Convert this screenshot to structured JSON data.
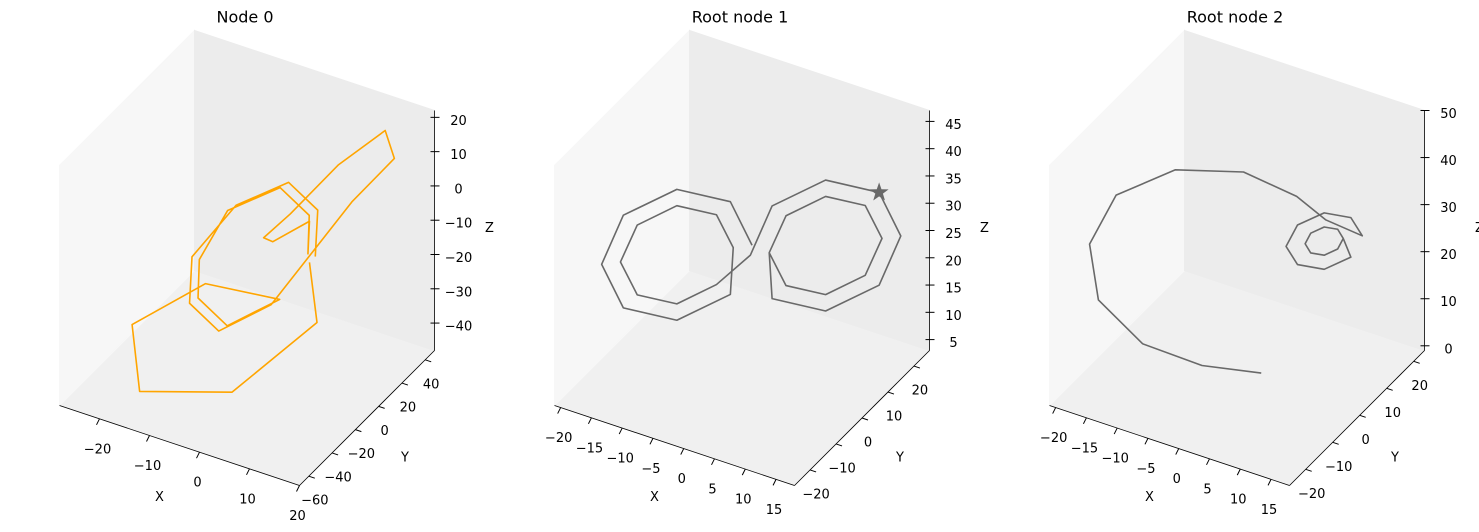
{
  "chart_data": [
    {
      "type": "line3d",
      "title": "Node 0",
      "xlabel": "X",
      "ylabel": "Y",
      "zlabel": "Z",
      "color": "#ffa500",
      "xlim": [
        -28,
        20
      ],
      "ylim": [
        -68,
        48
      ],
      "zlim": [
        -48,
        22
      ],
      "xticks": [
        {
          "value": -20,
          "label": "−20"
        },
        {
          "value": -10,
          "label": "−10"
        },
        0,
        10,
        20
      ],
      "yticks": [
        {
          "value": -60,
          "label": "−60"
        },
        {
          "value": -40,
          "label": "−40"
        },
        {
          "value": -20,
          "label": "−20"
        },
        0,
        20,
        40
      ],
      "zticks": [
        {
          "value": -40,
          "label": "−40"
        },
        {
          "value": -30,
          "label": "−30"
        },
        {
          "value": -20,
          "label": "−20"
        },
        {
          "value": -10,
          "label": "−10"
        },
        0,
        10,
        20
      ],
      "x": [
        5,
        2,
        -5,
        -12,
        -15,
        -12,
        -5,
        2,
        10,
        15,
        12,
        5,
        0,
        -3,
        0,
        5,
        4,
        1,
        -6,
        -13,
        -14,
        -11,
        -4,
        3,
        -10,
        -20,
        -15,
        0,
        10,
        5
      ],
      "y": [
        10,
        25,
        30,
        15,
        -10,
        -25,
        -30,
        -15,
        20,
        35,
        40,
        30,
        10,
        0,
        -5,
        5,
        8,
        22,
        27,
        12,
        -8,
        -22,
        -27,
        -12,
        -20,
        -40,
        -55,
        -40,
        -10,
        5
      ],
      "z": [
        -15,
        -8,
        -5,
        -10,
        -18,
        -25,
        -28,
        -22,
        0,
        10,
        15,
        5,
        -5,
        -10,
        -8,
        -3,
        -14,
        -9,
        -6,
        -11,
        -19,
        -24,
        -27,
        -21,
        -20,
        -30,
        -42,
        -40,
        -25,
        -15
      ]
    },
    {
      "type": "line3d",
      "title": "Root node 1",
      "xlabel": "X",
      "ylabel": "Y",
      "zlabel": "Z",
      "color": "#696969",
      "xlim": [
        -21,
        18
      ],
      "ylim": [
        -26,
        26
      ],
      "zlim": [
        3,
        47
      ],
      "xticks": [
        {
          "value": -20,
          "label": "−20"
        },
        {
          "value": -15,
          "label": "−15"
        },
        {
          "value": -10,
          "label": "−10"
        },
        {
          "value": -5,
          "label": "−5"
        },
        0,
        5,
        10,
        15
      ],
      "yticks": [
        {
          "value": -20,
          "label": "−20"
        },
        {
          "value": -10,
          "label": "−10"
        },
        0,
        10,
        20
      ],
      "zticks": [
        5,
        10,
        15,
        20,
        25,
        30,
        35,
        40,
        45
      ],
      "x": [
        -0.5,
        -2.8,
        -8.5,
        -14.2,
        -16.5,
        -14.2,
        -8.5,
        -2.8,
        -2.5,
        -4.3,
        -8.5,
        -12.7,
        -14.5,
        -12.7,
        -8.5,
        -4.3,
        0.5,
        2.8,
        8.5,
        14.2,
        16.5,
        14.2,
        8.5,
        2.8,
        2.5,
        4.3,
        8.5,
        12.7,
        14.5,
        12.7,
        8.5,
        4.3,
        2.5
      ],
      "y": [
        1.5,
        -1.4,
        -8.5,
        -15.6,
        -18.5,
        -15.6,
        -8.5,
        -1.4,
        -1,
        -3.2,
        -8.5,
        -13.8,
        -16,
        -13.8,
        -8.5,
        -3.2,
        -1.5,
        1.4,
        8.5,
        15.6,
        18.5,
        15.6,
        8.5,
        1.4,
        1,
        3.2,
        8.5,
        13.8,
        16,
        13.8,
        8.5,
        3.2,
        1
      ],
      "z": [
        27,
        35.5,
        39,
        35.5,
        27,
        18.5,
        15,
        18.5,
        27,
        33.4,
        36,
        33.4,
        27,
        20.6,
        18,
        20.6,
        27,
        35.5,
        39,
        35.5,
        27,
        18.5,
        15,
        18.5,
        27,
        33.4,
        36,
        33.4,
        27,
        20.6,
        18,
        20.6,
        27
      ],
      "marker": {
        "x": 14.2,
        "y": 15.6,
        "z": 35.5
      }
    },
    {
      "type": "line3d",
      "title": "Root node 2",
      "xlabel": "X",
      "ylabel": "Y",
      "zlabel": "Z",
      "color": "#696969",
      "xlim": [
        -21,
        18
      ],
      "ylim": [
        -26,
        24
      ],
      "zlim": [
        -1,
        50
      ],
      "xticks": [
        {
          "value": -20,
          "label": "−20"
        },
        {
          "value": -15,
          "label": "−15"
        },
        {
          "value": -10,
          "label": "−10"
        },
        {
          "value": -5,
          "label": "−5"
        },
        0,
        5,
        10,
        15
      ],
      "yticks": [
        {
          "value": -20,
          "label": "−20"
        },
        {
          "value": -10,
          "label": "−10"
        },
        0,
        10,
        20
      ],
      "zticks": [
        0,
        10,
        20,
        30,
        40,
        50
      ],
      "x": [
        2,
        -5,
        -12,
        -17,
        -18,
        -15,
        -8,
        0,
        6,
        9,
        12.5,
        11.3,
        8.5,
        5.7,
        4.5,
        5.7,
        8.5,
        11.3,
        10.5,
        9.9,
        8.5,
        7.1,
        6.5,
        7.1,
        8.5,
        9.9,
        10.5
      ],
      "y": [
        0,
        -6,
        -12,
        -17,
        -18,
        -15,
        -9,
        -2,
        4,
        8,
        13.5,
        12,
        8.5,
        5,
        3.5,
        5,
        8.5,
        12,
        11,
        10.3,
        8.5,
        6.7,
        6,
        6.7,
        8.5,
        10.3,
        11
      ],
      "z": [
        1,
        3,
        8,
        18,
        30,
        40,
        45,
        44,
        38,
        32,
        27,
        31.2,
        33,
        31.2,
        27,
        22.8,
        21,
        22.8,
        27,
        29.1,
        30,
        29.1,
        27,
        24.9,
        24,
        24.9,
        27
      ]
    }
  ]
}
